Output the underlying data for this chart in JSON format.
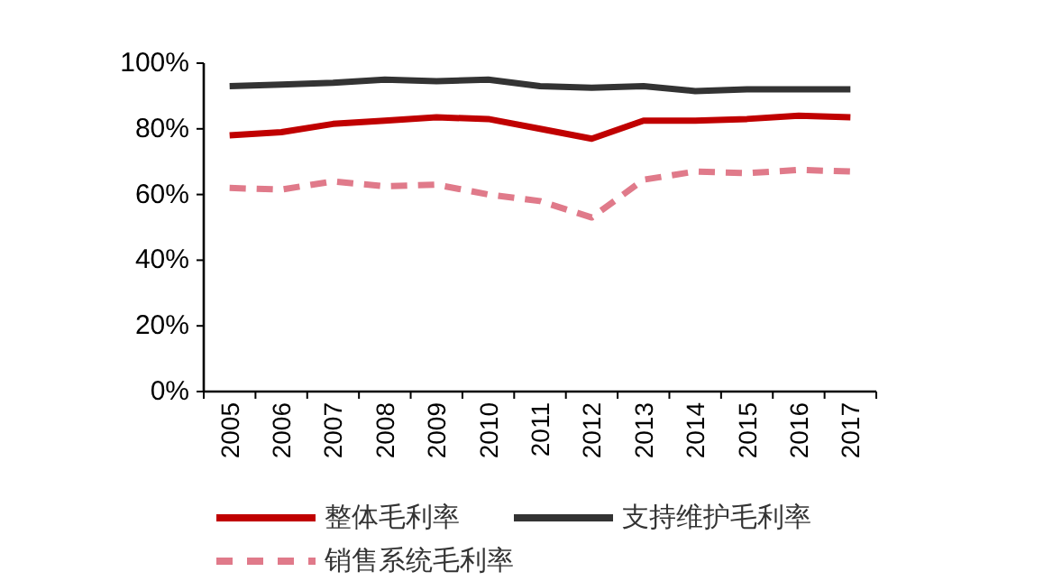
{
  "chart_data": {
    "type": "line",
    "categories": [
      "2005",
      "2006",
      "2007",
      "2008",
      "2009",
      "2010",
      "2011",
      "2012",
      "2013",
      "2014",
      "2015",
      "2016",
      "2017"
    ],
    "series": [
      {
        "name": "整体毛利率",
        "color": "#c00000",
        "line_style": "solid",
        "values": [
          78,
          79,
          81.5,
          82.5,
          83.5,
          83,
          80,
          77,
          82.5,
          82.5,
          83,
          84,
          83.5
        ]
      },
      {
        "name": "支持维护毛利率",
        "color": "#333333",
        "line_style": "solid",
        "values": [
          93,
          93.5,
          94,
          95,
          94.5,
          95,
          93,
          92.5,
          93,
          91.5,
          92,
          92,
          92
        ]
      },
      {
        "name": "销售系统毛利率",
        "color": "#e07a8a",
        "line_style": "dashed",
        "values": [
          62,
          61.5,
          64,
          62.5,
          63,
          60,
          58,
          53,
          64.5,
          67,
          66.5,
          67.5,
          67
        ]
      }
    ],
    "ylim": [
      0,
      100
    ],
    "yticks": [
      {
        "value": 0,
        "label": "0%"
      },
      {
        "value": 20,
        "label": "20%"
      },
      {
        "value": 40,
        "label": "40%"
      },
      {
        "value": 60,
        "label": "60%"
      },
      {
        "value": 80,
        "label": "80%"
      },
      {
        "value": 100,
        "label": "100%"
      }
    ],
    "grid": false,
    "legend": "bottom",
    "marker": "none"
  }
}
